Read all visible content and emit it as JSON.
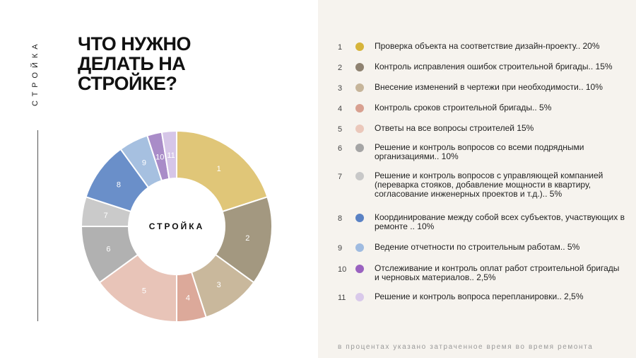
{
  "side_label": "СТРОЙКА",
  "title_lines": [
    "ЧТО НУЖНО",
    "ДЕЛАТЬ НА",
    "СТРОЙКЕ?"
  ],
  "footnote": "в процентах указано затраченное время во время ремонта",
  "chart_data": {
    "type": "pie",
    "center_label": "СТРОЙКА",
    "categories": [
      "1",
      "2",
      "3",
      "4",
      "5",
      "6",
      "7",
      "8",
      "9",
      "10",
      "11"
    ],
    "values": [
      20,
      15,
      10,
      5,
      15,
      10,
      5,
      10,
      5,
      2.5,
      2.5
    ],
    "colors": [
      "#e0c678",
      "#a39880",
      "#c9b89c",
      "#dca99a",
      "#e8c4b8",
      "#b1b1b1",
      "#cacaca",
      "#6a8fc9",
      "#a6c0e0",
      "#a98cc8",
      "#d6c6e8"
    ],
    "legend": [
      {
        "num": "1",
        "text": "Проверка объекта на соответствие дизайн-проекту.. 20%",
        "color": "#d6b43a"
      },
      {
        "num": "2",
        "text": "Контроль исправления ошибок строительной бригады.. 15%",
        "color": "#8e8271"
      },
      {
        "num": "3",
        "text": "Внесение изменений в чертежи при необходимости.. 10%",
        "color": "#c6b59a"
      },
      {
        "num": "4",
        "text": "Контроль сроков строительной бригады.. 5%",
        "color": "#d8a090"
      },
      {
        "num": "5",
        "text": "Ответы на все вопросы строителей 15%",
        "color": "#ebc8bb"
      },
      {
        "num": "6",
        "text": "Решение и контроль вопросов со всеми подрядными организациями.. 10%",
        "color": "#a5a5a5"
      },
      {
        "num": "7",
        "text": "Решение и контроль вопросов с управляющей компанией (переварка стояков, добавление мощности в квартиру, согласование инженерных проектов и т.д.).. 5%",
        "color": "#c8c8c8"
      },
      {
        "num": "8",
        "text": "Координирование между собой всех субъектов, участвующих в ремонте .. 10%",
        "color": "#5a82c4"
      },
      {
        "num": "9",
        "text": "Ведение отчетности по строительным работам.. 5%",
        "color": "#9fbbe0"
      },
      {
        "num": "10",
        "text": "Отслеживание и контроль оплат работ строительной бригады и черновых материалов.. 2,5%",
        "color": "#9a62c0"
      },
      {
        "num": "11",
        "text": "Решение и контроль вопроса перепланировки.. 2,5%",
        "color": "#d9c9ea"
      }
    ]
  }
}
